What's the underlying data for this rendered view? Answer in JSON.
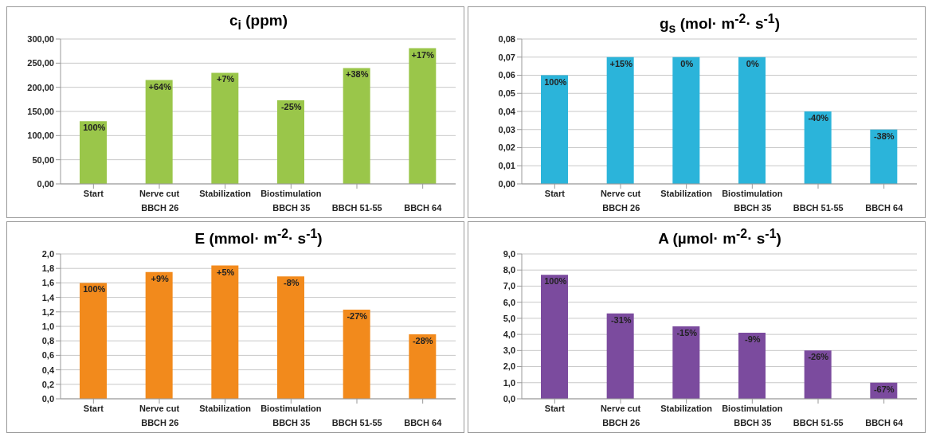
{
  "chart_data": [
    {
      "type": "bar",
      "title": "c$_{i}$ (ppm)",
      "categories": [
        "Start",
        "Nerve cut",
        "Stabilization",
        "Biostimulation",
        null,
        null
      ],
      "values": [
        130,
        215,
        230,
        173,
        240,
        281
      ],
      "color": "#9ac64a",
      "ylim": [
        0,
        300
      ],
      "yticks": [
        {
          "value": 0,
          "label": "0,00"
        },
        {
          "value": 50,
          "label": "50,00"
        },
        {
          "value": 100,
          "label": "100,00"
        },
        {
          "value": 150,
          "label": "150,00"
        },
        {
          "value": 200,
          "label": "200,00"
        },
        {
          "value": 250,
          "label": "250,00"
        },
        {
          "value": 300,
          "label": "300,00"
        }
      ],
      "grid": "y",
      "annotations": [
        "BBCH 26",
        "BBCH 35",
        "BBCH 51-55",
        "BBCH 64",
        {
          "text": "100%",
          "x": "Start",
          "y": 130
        },
        {
          "text": "+64%",
          "x": "Nerve cut",
          "y": 215
        },
        {
          "text": "+7%",
          "x": "Stabilization",
          "y": 230
        },
        {
          "text": "-25%",
          "x": "Biostimulation",
          "y": 173
        },
        {
          "text": "+38%",
          "y": 240
        },
        {
          "text": "+17%",
          "y": 281
        }
      ]
    },
    {
      "type": "bar",
      "title": "g$_{s}$ (mol· m$^{-2}$· s$^{-1}$)",
      "categories": [
        "Start",
        "Nerve cut",
        "Stabilization",
        "Biostimulation",
        null,
        null
      ],
      "values": [
        0.06,
        0.07,
        0.07,
        0.07,
        0.04,
        0.03
      ],
      "color": "#2bb4da",
      "ylim": [
        0,
        0.08
      ],
      "yticks": [
        {
          "value": 0,
          "label": "0,00"
        },
        {
          "value": 0.01,
          "label": "0,01"
        },
        {
          "value": 0.02,
          "label": "0,02"
        },
        {
          "value": 0.03,
          "label": "0,03"
        },
        {
          "value": 0.04,
          "label": "0,04"
        },
        {
          "value": 0.05,
          "label": "0,05"
        },
        {
          "value": 0.06,
          "label": "0,06"
        },
        {
          "value": 0.07,
          "label": "0,07"
        },
        {
          "value": 0.08,
          "label": "0,08"
        }
      ],
      "grid": "y",
      "annotations": [
        "BBCH 26",
        "BBCH 35",
        "BBCH 51-55",
        "BBCH 64",
        {
          "text": "100%",
          "x": "Start",
          "y": 0.06
        },
        {
          "text": "+15%",
          "x": "Nerve cut",
          "y": 0.07
        },
        {
          "text": "0%",
          "x": "Stabilization",
          "y": 0.07
        },
        {
          "text": "0%",
          "x": "Biostimulation",
          "y": 0.07
        },
        {
          "text": "-40%",
          "y": 0.04
        },
        {
          "text": "-38%",
          "y": 0.03
        }
      ]
    },
    {
      "type": "bar",
      "title": "E (mmol· m$^{-2}$· s$^{-1}$)",
      "categories": [
        "Start",
        "Nerve cut",
        "Stabilization",
        "Biostimulation",
        null,
        null
      ],
      "values": [
        1.6,
        1.75,
        1.84,
        1.69,
        1.23,
        0.89
      ],
      "color": "#f28a1c",
      "ylim": [
        0,
        2
      ],
      "yticks": [
        {
          "value": 0,
          "label": "0,0"
        },
        {
          "value": 0.2,
          "label": "0,2"
        },
        {
          "value": 0.4,
          "label": "0,4"
        },
        {
          "value": 0.6,
          "label": "0,6"
        },
        {
          "value": 0.8,
          "label": "0,8"
        },
        {
          "value": 1,
          "label": "1,0"
        },
        {
          "value": 1.2,
          "label": "1,2"
        },
        {
          "value": 1.4,
          "label": "1,4"
        },
        {
          "value": 1.6,
          "label": "1,6"
        },
        {
          "value": 1.8,
          "label": "1,8"
        },
        {
          "value": 2,
          "label": "2,0"
        }
      ],
      "grid": "y",
      "annotations": [
        "BBCH 26",
        "BBCH 35",
        "BBCH 51-55",
        "BBCH 64",
        {
          "text": "100%",
          "x": "Start",
          "y": 1.6
        },
        {
          "text": "+9%",
          "x": "Nerve cut",
          "y": 1.75
        },
        {
          "text": "+5%",
          "x": "Stabilization",
          "y": 1.84
        },
        {
          "text": "-8%",
          "x": "Biostimulation",
          "y": 1.69
        },
        {
          "text": "-27%",
          "y": 1.23
        },
        {
          "text": "-28%",
          "y": 0.89
        }
      ]
    },
    {
      "type": "bar",
      "title": "A (µmol· m$^{-2}$· s$^{-1}$)",
      "categories": [
        "Start",
        "Nerve cut",
        "Stabilization",
        "Biostimulation",
        null,
        null
      ],
      "values": [
        7.7,
        5.3,
        4.5,
        4.1,
        3.0,
        1.0
      ],
      "color": "#7b4b9e",
      "ylim": [
        0,
        9
      ],
      "yticks": [
        {
          "value": 0,
          "label": "0,0"
        },
        {
          "value": 1,
          "label": "1,0"
        },
        {
          "value": 2,
          "label": "2,0"
        },
        {
          "value": 3,
          "label": "3,0"
        },
        {
          "value": 4,
          "label": "4,0"
        },
        {
          "value": 5,
          "label": "5,0"
        },
        {
          "value": 6,
          "label": "6,0"
        },
        {
          "value": 7,
          "label": "7,0"
        },
        {
          "value": 8,
          "label": "8,0"
        },
        {
          "value": 9,
          "label": "9,0"
        }
      ],
      "grid": "y",
      "annotations": [
        "BBCH 26",
        "BBCH 35",
        "BBCH 51-55",
        "BBCH 64",
        {
          "text": "100%",
          "x": "Start",
          "y": 7.7
        },
        {
          "text": "-31%",
          "x": "Nerve cut",
          "y": 5.3
        },
        {
          "text": "-15%",
          "x": "Stabilization",
          "y": 4.5
        },
        {
          "text": "-9%",
          "x": "Biostimulation",
          "y": 4.1
        },
        {
          "text": "-26%",
          "y": 3.0
        },
        {
          "text": "-67%",
          "y": 1.0
        }
      ]
    }
  ]
}
